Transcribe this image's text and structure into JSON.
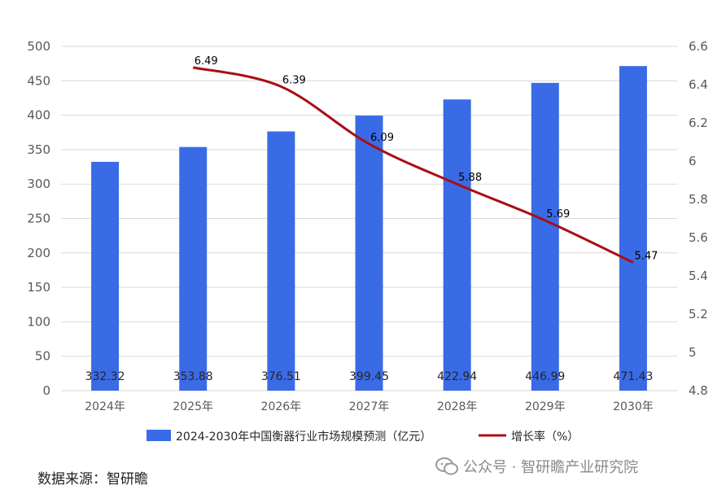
{
  "chart_data": {
    "type": "bar",
    "categories": [
      "2024年",
      "2025年",
      "2026年",
      "2027年",
      "2028年",
      "2029年",
      "2030年"
    ],
    "series": [
      {
        "name": "2024-2030年中国衡器行业市场规模预测（亿元）",
        "type": "bar",
        "axis": "left",
        "values": [
          332.32,
          353.88,
          376.51,
          399.45,
          422.94,
          446.99,
          471.43
        ],
        "labels": [
          "332.32",
          "353.88",
          "376.51",
          "399.45",
          "422.94",
          "446.99",
          "471.43"
        ],
        "color": "#3a6be6"
      },
      {
        "name": "增长率（%）",
        "type": "line",
        "axis": "right",
        "x": [
          "2025年",
          "2026年",
          "2027年",
          "2028年",
          "2029年",
          "2030年"
        ],
        "values": [
          6.49,
          6.39,
          6.09,
          5.88,
          5.69,
          5.47
        ],
        "labels": [
          "6.49",
          "6.39",
          "6.09",
          "5.88",
          "5.69",
          "5.47"
        ],
        "color": "#a80f14"
      }
    ],
    "left_axis": {
      "ylim": [
        0,
        500
      ],
      "ticks": [
        "0",
        "50",
        "100",
        "150",
        "200",
        "250",
        "300",
        "350",
        "400",
        "450",
        "500"
      ]
    },
    "right_axis": {
      "ylim": [
        4.8,
        6.6
      ],
      "ticks": [
        "4.8",
        "5",
        "5.2",
        "5.4",
        "5.6",
        "5.8",
        "6",
        "6.2",
        "6.4",
        "6.6"
      ]
    },
    "grid": true,
    "legend_position": "bottom"
  },
  "source": "数据来源：智研瞻",
  "watermark": "公众号 · 智研瞻产业研究院",
  "watermark_icon": "wechat-icon"
}
